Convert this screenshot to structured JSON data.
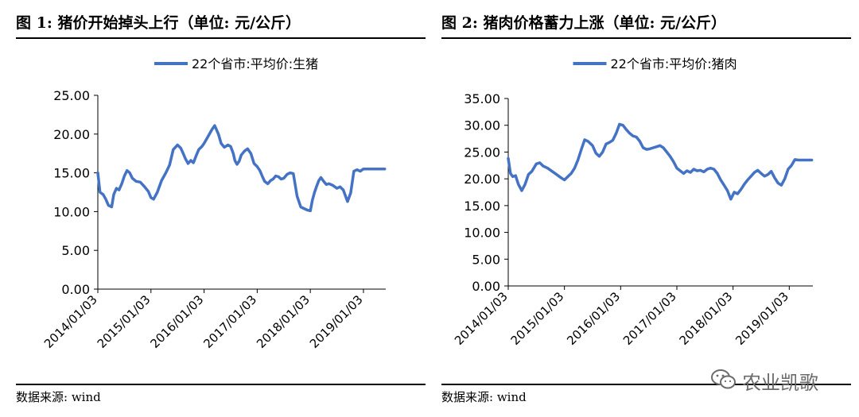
{
  "charts": [
    {
      "title": "图 1:  猪价开始掉头上行（单位:  元/公斤）",
      "source": "数据来源:  wind"
    },
    {
      "title": "图 2:  猪肉价格蓄力上涨（单位:  元/公斤）",
      "source": "数据来源:  wind"
    }
  ],
  "watermark": {
    "text": "农业凯歌",
    "icon": "wechat-icon"
  },
  "chart_data": [
    {
      "type": "line",
      "title": "图 1:  猪价开始掉头上行（单位:  元/公斤）",
      "xlabel": "",
      "ylabel": "",
      "legend_position": "top-center",
      "grid": false,
      "ylim": [
        0,
        25
      ],
      "yticks": [
        "0.00",
        "5.00",
        "10.00",
        "15.00",
        "20.00",
        "25.00"
      ],
      "xticks": [
        "2014/01/03",
        "2015/01/03",
        "2016/01/03",
        "2017/01/03",
        "2018/01/03",
        "2019/01/03"
      ],
      "xlim": [
        2014.0,
        2019.42
      ],
      "color": "#4472c4",
      "series": [
        {
          "name": "22个省市:平均价:生猪",
          "x": [
            2014.0,
            2014.04,
            2014.1,
            2014.15,
            2014.2,
            2014.26,
            2014.3,
            2014.35,
            2014.4,
            2014.45,
            2014.5,
            2014.55,
            2014.6,
            2014.65,
            2014.72,
            2014.8,
            2014.88,
            2014.95,
            2015.0,
            2015.05,
            2015.12,
            2015.2,
            2015.28,
            2015.35,
            2015.42,
            2015.5,
            2015.56,
            2015.6,
            2015.65,
            2015.7,
            2015.75,
            2015.8,
            2015.85,
            2015.9,
            2015.96,
            2016.0,
            2016.05,
            2016.1,
            2016.15,
            2016.2,
            2016.27,
            2016.32,
            2016.38,
            2016.45,
            2016.5,
            2016.55,
            2016.58,
            2016.62,
            2016.66,
            2016.7,
            2016.76,
            2016.82,
            2016.88,
            2016.94,
            2017.0,
            2017.05,
            2017.1,
            2017.14,
            2017.2,
            2017.25,
            2017.3,
            2017.35,
            2017.4,
            2017.45,
            2017.5,
            2017.56,
            2017.62,
            2017.68,
            2017.75,
            2017.82,
            2017.88,
            2017.94,
            2018.0,
            2018.04,
            2018.08,
            2018.12,
            2018.16,
            2018.2,
            2018.25,
            2018.3,
            2018.35,
            2018.42,
            2018.5,
            2018.56,
            2018.62,
            2018.7,
            2018.76,
            2018.82,
            2018.88,
            2018.94,
            2019.0,
            2019.03,
            2019.06,
            2019.1,
            2019.14,
            2019.18,
            2019.22,
            2019.26,
            2019.3,
            2019.35,
            2019.4
          ],
          "values": [
            15.0,
            12.5,
            12.2,
            11.6,
            10.8,
            10.6,
            12.2,
            13.0,
            12.8,
            13.6,
            14.6,
            15.3,
            15.0,
            14.3,
            13.9,
            13.8,
            13.2,
            12.6,
            11.8,
            11.6,
            12.5,
            14.0,
            15.0,
            16.0,
            18.0,
            18.6,
            18.2,
            17.6,
            16.8,
            16.2,
            16.6,
            16.3,
            17.2,
            18.0,
            18.4,
            18.8,
            19.4,
            20.0,
            20.6,
            21.1,
            20.0,
            18.8,
            18.3,
            18.6,
            18.4,
            17.5,
            16.6,
            16.1,
            16.5,
            17.3,
            17.8,
            18.1,
            17.5,
            16.2,
            15.8,
            15.3,
            14.5,
            13.9,
            13.6,
            14.0,
            14.2,
            14.6,
            14.5,
            14.2,
            14.3,
            14.8,
            15.0,
            14.9,
            12.0,
            10.6,
            10.4,
            10.2,
            10.1,
            11.5,
            12.5,
            13.3,
            14.0,
            14.4,
            13.9,
            13.5,
            13.6,
            13.4,
            13.0,
            13.2,
            12.8,
            11.3,
            12.4,
            15.2,
            15.4,
            15.2,
            15.5,
            15.5,
            15.5,
            15.5,
            15.5,
            15.5,
            15.5,
            15.5,
            15.5,
            15.5,
            15.5
          ]
        }
      ]
    },
    {
      "type": "line",
      "title": "图 2:  猪肉价格蓄力上涨（单位:  元/公斤）",
      "xlabel": "",
      "ylabel": "",
      "legend_position": "top-center",
      "grid": false,
      "ylim": [
        0,
        35
      ],
      "yticks": [
        "0.00",
        "5.00",
        "10.00",
        "15.00",
        "20.00",
        "25.00",
        "30.00",
        "35.00"
      ],
      "xticks": [
        "2014/01/03",
        "2015/01/03",
        "2016/01/03",
        "2017/01/03",
        "2018/01/03",
        "2019/01/03"
      ],
      "xlim": [
        2014.0,
        2019.42
      ],
      "color": "#4472c4",
      "series": [
        {
          "name": "22个省市:平均价:猪肉",
          "x": [
            2014.0,
            2014.04,
            2014.08,
            2014.13,
            2014.18,
            2014.24,
            2014.3,
            2014.36,
            2014.42,
            2014.5,
            2014.56,
            2014.62,
            2014.7,
            2014.78,
            2014.86,
            2014.94,
            2015.0,
            2015.06,
            2015.12,
            2015.18,
            2015.24,
            2015.3,
            2015.36,
            2015.42,
            2015.5,
            2015.56,
            2015.62,
            2015.68,
            2015.74,
            2015.8,
            2015.86,
            2015.92,
            2015.98,
            2016.04,
            2016.1,
            2016.16,
            2016.22,
            2016.28,
            2016.34,
            2016.4,
            2016.46,
            2016.52,
            2016.58,
            2016.64,
            2016.7,
            2016.76,
            2016.82,
            2016.88,
            2016.94,
            2017.0,
            2017.06,
            2017.12,
            2017.18,
            2017.24,
            2017.3,
            2017.36,
            2017.42,
            2017.48,
            2017.54,
            2017.6,
            2017.66,
            2017.72,
            2017.78,
            2017.84,
            2017.9,
            2017.96,
            2018.02,
            2018.08,
            2018.14,
            2018.2,
            2018.26,
            2018.32,
            2018.38,
            2018.44,
            2018.5,
            2018.56,
            2018.62,
            2018.68,
            2018.74,
            2018.8,
            2018.86,
            2018.92,
            2018.98,
            2019.04,
            2019.1,
            2019.16,
            2019.22,
            2019.28,
            2019.34,
            2019.4
          ],
          "values": [
            23.8,
            21.0,
            20.4,
            20.6,
            19.0,
            17.8,
            19.0,
            20.8,
            21.4,
            22.8,
            23.0,
            22.4,
            22.0,
            21.4,
            20.8,
            20.2,
            19.8,
            20.4,
            21.0,
            22.0,
            23.5,
            25.5,
            27.3,
            27.0,
            26.2,
            24.8,
            24.2,
            25.0,
            26.5,
            26.8,
            27.2,
            28.5,
            30.2,
            30.0,
            29.2,
            28.5,
            28.0,
            27.8,
            27.0,
            25.8,
            25.5,
            25.6,
            25.8,
            26.0,
            26.2,
            25.8,
            25.0,
            24.2,
            23.2,
            22.0,
            21.5,
            21.0,
            21.5,
            21.2,
            21.8,
            21.5,
            21.6,
            21.3,
            21.8,
            22.0,
            21.8,
            21.0,
            19.8,
            18.8,
            17.8,
            16.2,
            17.5,
            17.2,
            18.0,
            19.0,
            19.8,
            20.5,
            21.2,
            21.6,
            21.0,
            20.5,
            20.8,
            21.4,
            20.2,
            19.2,
            18.8,
            20.0,
            21.8,
            22.5,
            23.6,
            23.5,
            23.5,
            23.5,
            23.5,
            23.5
          ]
        }
      ]
    }
  ]
}
